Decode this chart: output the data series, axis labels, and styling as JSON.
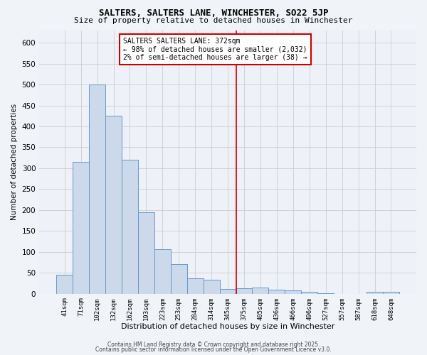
{
  "title": "SALTERS, SALTERS LANE, WINCHESTER, SO22 5JP",
  "subtitle": "Size of property relative to detached houses in Winchester",
  "xlabel": "Distribution of detached houses by size in Winchester",
  "ylabel": "Number of detached properties",
  "categories": [
    "41sqm",
    "71sqm",
    "102sqm",
    "132sqm",
    "162sqm",
    "193sqm",
    "223sqm",
    "253sqm",
    "284sqm",
    "314sqm",
    "345sqm",
    "375sqm",
    "405sqm",
    "436sqm",
    "466sqm",
    "496sqm",
    "527sqm",
    "557sqm",
    "587sqm",
    "618sqm",
    "648sqm"
  ],
  "values": [
    45,
    315,
    500,
    425,
    320,
    195,
    107,
    70,
    37,
    33,
    12,
    13,
    14,
    10,
    8,
    5,
    1,
    0,
    0,
    5,
    5
  ],
  "bar_color": "#ccd9ea",
  "bar_edge_color": "#6699cc",
  "vline_color": "#cc0000",
  "annotation_title": "SALTERS SALTERS LANE: 372sqm",
  "annotation_line1": "← 98% of detached houses are smaller (2,032)",
  "annotation_line2": "2% of semi-detached houses are larger (38) →",
  "annotation_box_color": "#ffffff",
  "annotation_border_color": "#cc0000",
  "grid_color": "#cccccc",
  "background_color": "#f0f4f8",
  "plot_bg_color": "#eef2f8",
  "footer1": "Contains HM Land Registry data © Crown copyright and database right 2025.",
  "footer2": "Contains public sector information licensed under the Open Government Licence v3.0.",
  "ylim": [
    0,
    630
  ],
  "yticks": [
    0,
    50,
    100,
    150,
    200,
    250,
    300,
    350,
    400,
    450,
    500,
    550,
    600
  ]
}
